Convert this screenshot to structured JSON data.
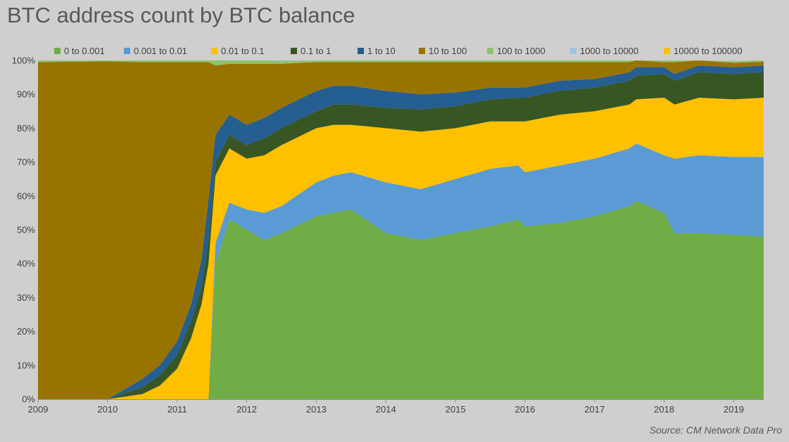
{
  "title": "BTC address count by BTC balance",
  "source": "Source: CM Network Data Pro",
  "chart_data": {
    "type": "area",
    "stacked": "percent",
    "title": "BTC address count by BTC balance",
    "xlabel": "",
    "ylabel": "",
    "ylim": [
      0,
      100
    ],
    "xlim": [
      2009.0,
      2019.43
    ],
    "grid": false,
    "legend_position": "top",
    "y_ticks": [
      "0%",
      "10%",
      "20%",
      "30%",
      "40%",
      "50%",
      "60%",
      "70%",
      "80%",
      "90%",
      "100%"
    ],
    "x_ticks": [
      "2009",
      "2010",
      "2011",
      "2012",
      "2013",
      "2014",
      "2015",
      "2016",
      "2017",
      "2018",
      "2019"
    ],
    "x": [
      2009.0,
      2010.0,
      2010.5,
      2010.75,
      2011.0,
      2011.2,
      2011.35,
      2011.45,
      2011.55,
      2011.75,
      2012.0,
      2012.25,
      2012.5,
      2013.0,
      2013.25,
      2013.5,
      2014.0,
      2014.5,
      2015.0,
      2015.5,
      2015.9,
      2016.0,
      2016.5,
      2017.0,
      2017.5,
      2017.6,
      2018.0,
      2018.15,
      2018.5,
      2019.0,
      2019.43
    ],
    "series": [
      {
        "name": "0 to 0.001",
        "color": "#70ad47",
        "values": [
          0,
          0,
          0,
          0,
          0,
          0,
          0,
          0,
          40,
          53,
          50,
          47,
          49,
          54,
          55,
          56,
          49,
          47,
          49,
          51,
          53,
          51,
          52,
          54,
          57,
          58.5,
          55,
          49,
          49,
          48.5,
          48
        ]
      },
      {
        "name": "0.001 to 0.01",
        "color": "#5b9bd5",
        "values": [
          0,
          0,
          0,
          0,
          0,
          0,
          0,
          0,
          6,
          5,
          6,
          8,
          8,
          10,
          11,
          11,
          15,
          15,
          16,
          17,
          16,
          16,
          17,
          17,
          17,
          17,
          17,
          22,
          23,
          23,
          23.5
        ]
      },
      {
        "name": "0.01 to 0.1",
        "color": "#ffc000",
        "values": [
          0,
          0,
          1.5,
          4,
          9,
          18,
          28,
          40,
          20,
          16,
          15,
          17,
          18,
          16,
          15,
          14,
          16,
          17,
          15,
          14,
          13,
          15,
          15,
          14,
          13,
          13,
          17,
          16,
          17,
          17,
          17.5
        ]
      },
      {
        "name": "0.1 to 1",
        "color": "#375623",
        "values": [
          0,
          0,
          2,
          3,
          4,
          5,
          5,
          7,
          4,
          4,
          4,
          5,
          5,
          5,
          6,
          6,
          6,
          6.5,
          6.5,
          6.5,
          7,
          7,
          7,
          7,
          7,
          7,
          7,
          7,
          7.5,
          7.5,
          7.5
        ]
      },
      {
        "name": "1 to 10",
        "color": "#255e91",
        "values": [
          0,
          0,
          2.5,
          3,
          4,
          5,
          8,
          12,
          8,
          6,
          6,
          6,
          6,
          6,
          5.5,
          5.5,
          5,
          4.5,
          4,
          3.5,
          3,
          3,
          3,
          2.5,
          2.5,
          2.5,
          2,
          2,
          2,
          2,
          2
        ]
      },
      {
        "name": "10 to 100",
        "color": "#997300",
        "values": [
          99.5,
          99.7,
          93.5,
          89.5,
          82.5,
          71.5,
          58.5,
          40.5,
          20.5,
          15,
          18,
          16,
          13,
          8.5,
          7,
          7,
          8.5,
          9.5,
          9,
          7.5,
          7.5,
          7.5,
          5.5,
          5,
          3,
          2,
          1.5,
          3.5,
          1.5,
          1.3,
          1.1
        ]
      },
      {
        "name": "100 to 1000",
        "color": "#8fc36b",
        "values": [
          0.5,
          0.3,
          0.5,
          0.5,
          0.5,
          0.5,
          0.5,
          0.5,
          1.5,
          1,
          1,
          1,
          0.9,
          0.5,
          0.5,
          0.5,
          0.5,
          0.5,
          0.5,
          0.5,
          0.5,
          0.5,
          0.5,
          0.5,
          0.5,
          0.5,
          0.5,
          0.5,
          0.5,
          0.5,
          0.5
        ]
      },
      {
        "name": "1000 to 10000",
        "color": "#9dc3e6",
        "values": [
          0,
          0,
          0,
          0,
          0,
          0,
          0,
          0,
          0,
          0,
          0.1,
          0.1,
          0.1,
          0.1,
          0.1,
          0.1,
          0.1,
          0.1,
          0.1,
          0.1,
          0.1,
          0.1,
          0.1,
          0.1,
          0.1,
          0.1,
          0.1,
          0.1,
          0.1,
          0.1,
          0.1
        ]
      },
      {
        "name": "10000 to 100000",
        "color": "#ffc000",
        "values": [
          0,
          0,
          0,
          0,
          0,
          0,
          0,
          0,
          0,
          0,
          0,
          0,
          0,
          0,
          0,
          0,
          0,
          0,
          0,
          0,
          0,
          0,
          0,
          0,
          0,
          0,
          0,
          0,
          0,
          0,
          0
        ]
      }
    ]
  }
}
